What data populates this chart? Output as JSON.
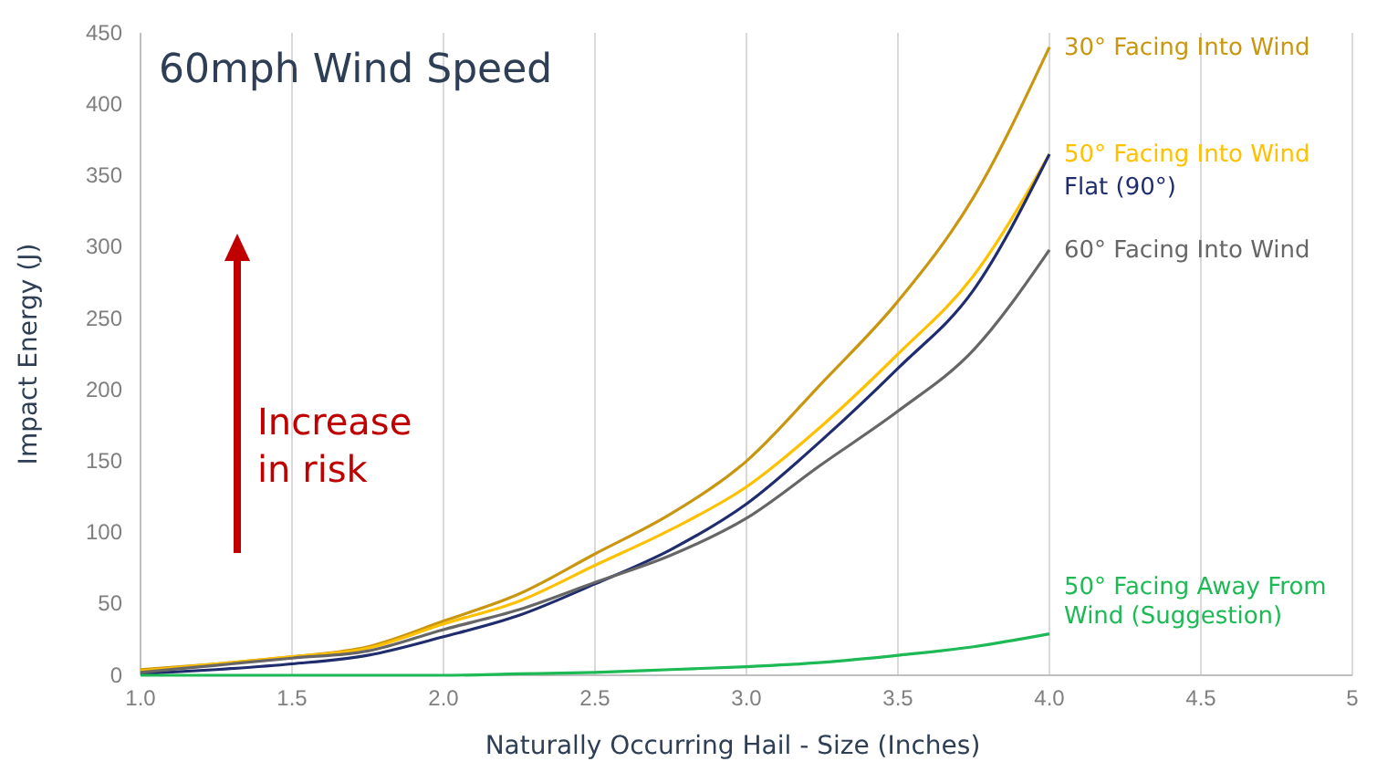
{
  "chart_data": {
    "type": "line",
    "title": "60mph Wind Speed",
    "xlabel": "Naturally Occurring Hail - Size (Inches)",
    "ylabel": "Impact Energy (J)",
    "x": [
      1,
      1.25,
      1.5,
      1.75,
      2,
      2.25,
      2.5,
      2.75,
      3,
      3.25,
      3.5,
      3.75,
      4
    ],
    "series": [
      {
        "name": "30° Facing Into Wind",
        "color": "#c8960f",
        "values": [
          4,
          8,
          13,
          20,
          38,
          57,
          85,
          113,
          150,
          205,
          262,
          335,
          440
        ]
      },
      {
        "name": "50° Facing Into Wind",
        "color": "#ffc000",
        "values": [
          3,
          8,
          13,
          19,
          36,
          52,
          77,
          102,
          132,
          175,
          225,
          280,
          365
        ]
      },
      {
        "name": "Flat (90°)",
        "color": "#1f2d6e",
        "values": [
          1,
          4,
          8,
          14,
          27,
          42,
          64,
          88,
          120,
          165,
          215,
          270,
          365
        ]
      },
      {
        "name": "60° Facing Into Wind",
        "color": "#666666",
        "values": [
          2,
          7,
          12,
          17,
          32,
          46,
          65,
          84,
          110,
          148,
          185,
          228,
          298
        ]
      },
      {
        "name": "50° Facing Away From Wind (Suggestion)",
        "color": "#1db954",
        "values": [
          0,
          0,
          0,
          0,
          0,
          1,
          2,
          4,
          6,
          9,
          14,
          20,
          29
        ]
      }
    ],
    "xlim": [
      1,
      5
    ],
    "ylim": [
      0,
      450
    ],
    "xticks": [
      {
        "value": 1,
        "label": "1.0"
      },
      {
        "value": 1.5,
        "label": "1.5"
      },
      {
        "value": 2,
        "label": "2.0"
      },
      {
        "value": 2.5,
        "label": "2.5"
      },
      {
        "value": 3,
        "label": "3.0"
      },
      {
        "value": 3.5,
        "label": "3.5"
      },
      {
        "value": 4,
        "label": "4.0"
      },
      {
        "value": 4.5,
        "label": "4.5"
      },
      5
    ],
    "yticks": [
      0,
      50,
      100,
      150,
      200,
      250,
      300,
      350,
      400,
      450
    ],
    "grid": "x",
    "line_style": "solid",
    "marker": "none",
    "annotations": [
      "Increase in risk"
    ]
  }
}
